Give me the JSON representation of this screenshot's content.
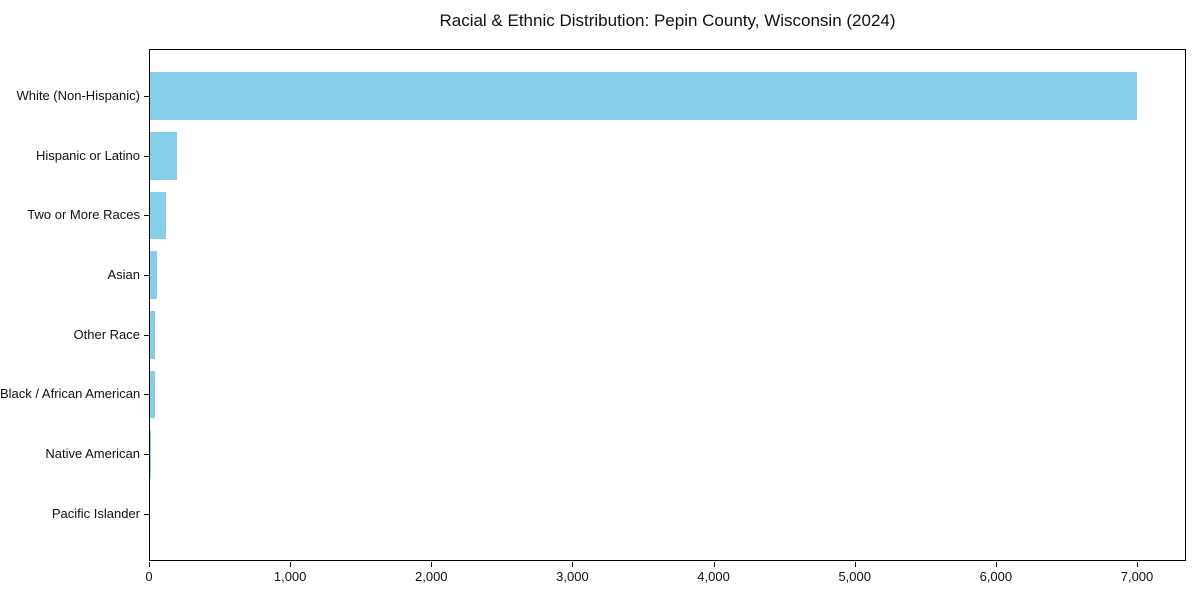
{
  "chart_data": {
    "type": "bar",
    "orientation": "horizontal",
    "title": "Racial & Ethnic Distribution: Pepin County, Wisconsin (2024)",
    "xlabel": "",
    "ylabel": "",
    "categories": [
      "White (Non-Hispanic)",
      "Hispanic or Latino",
      "Two or More Races",
      "Asian",
      "Other Race",
      "Black / African American",
      "Native American",
      "Pacific Islander"
    ],
    "values": [
      6995,
      190,
      110,
      50,
      35,
      38,
      8,
      0
    ],
    "bar_color": "#87CEEB",
    "xlim": [
      0,
      7347
    ],
    "x_ticks": [
      0,
      1000,
      2000,
      3000,
      4000,
      5000,
      6000,
      7000
    ],
    "x_tick_labels": [
      "0",
      "1,000",
      "2,000",
      "3,000",
      "4,000",
      "5,000",
      "6,000",
      "7,000"
    ],
    "grid": false,
    "legend": "none",
    "background_color": "#ffffff",
    "spine_color": "#000000"
  }
}
